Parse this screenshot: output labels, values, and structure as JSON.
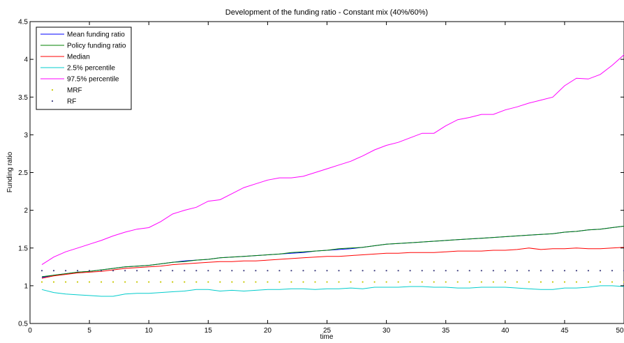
{
  "chart_data": {
    "type": "line",
    "title": "Development of the funding ratio - Constant mix (40%/60%)",
    "xlabel": "time",
    "ylabel": "Funding ratio",
    "xlim": [
      0,
      50
    ],
    "ylim": [
      0.5,
      4.5
    ],
    "xticks": [
      0,
      5,
      10,
      15,
      20,
      25,
      30,
      35,
      40,
      45,
      50
    ],
    "yticks": [
      0.5,
      1,
      1.5,
      2,
      2.5,
      3,
      3.5,
      4,
      4.5
    ],
    "xtick_labels": [
      "0",
      "5",
      "10",
      "15",
      "20",
      "25",
      "30",
      "35",
      "40",
      "45",
      "50"
    ],
    "ytick_labels": [
      "0.5",
      "1",
      "1.5",
      "2",
      "2.5",
      "3",
      "3.5",
      "4",
      "4.5"
    ],
    "grid": false,
    "legend_position": "top-left",
    "series": [
      {
        "name": "Mean funding ratio",
        "color": "#0000ff",
        "style": "line",
        "x": [
          1,
          2,
          3,
          4,
          5,
          6,
          7,
          8,
          9,
          10,
          11,
          12,
          13,
          14,
          15,
          16,
          17,
          18,
          19,
          20,
          21,
          22,
          23,
          24,
          25,
          26,
          27,
          28,
          29,
          30,
          31,
          32,
          33,
          34,
          35,
          36,
          37,
          38,
          39,
          40,
          41,
          42,
          43,
          44,
          45,
          46,
          47,
          48,
          49,
          50
        ],
        "values": [
          1.11,
          1.14,
          1.16,
          1.18,
          1.19,
          1.21,
          1.23,
          1.25,
          1.26,
          1.27,
          1.29,
          1.31,
          1.33,
          1.34,
          1.35,
          1.37,
          1.38,
          1.39,
          1.4,
          1.41,
          1.42,
          1.43,
          1.44,
          1.46,
          1.47,
          1.48,
          1.49,
          1.51,
          1.53,
          1.55,
          1.56,
          1.57,
          1.58,
          1.59,
          1.6,
          1.61,
          1.62,
          1.63,
          1.64,
          1.65,
          1.66,
          1.67,
          1.68,
          1.69,
          1.71,
          1.72,
          1.74,
          1.75,
          1.77,
          1.79
        ]
      },
      {
        "name": "Policy funding ratio",
        "color": "#008000",
        "style": "line",
        "x": [
          1,
          2,
          3,
          4,
          5,
          6,
          7,
          8,
          9,
          10,
          11,
          12,
          13,
          14,
          15,
          16,
          17,
          18,
          19,
          20,
          21,
          22,
          23,
          24,
          25,
          26,
          27,
          28,
          29,
          30,
          31,
          32,
          33,
          34,
          35,
          36,
          37,
          38,
          39,
          40,
          41,
          42,
          43,
          44,
          45,
          46,
          47,
          48,
          49,
          50
        ],
        "values": [
          1.12,
          1.14,
          1.16,
          1.18,
          1.19,
          1.21,
          1.23,
          1.25,
          1.26,
          1.27,
          1.29,
          1.31,
          1.32,
          1.34,
          1.35,
          1.37,
          1.38,
          1.39,
          1.4,
          1.41,
          1.42,
          1.44,
          1.45,
          1.46,
          1.47,
          1.49,
          1.5,
          1.51,
          1.53,
          1.55,
          1.56,
          1.57,
          1.58,
          1.59,
          1.6,
          1.61,
          1.62,
          1.63,
          1.64,
          1.65,
          1.66,
          1.67,
          1.68,
          1.69,
          1.71,
          1.72,
          1.74,
          1.75,
          1.77,
          1.79
        ]
      },
      {
        "name": "Median",
        "color": "#ff0000",
        "style": "line",
        "x": [
          1,
          2,
          3,
          4,
          5,
          6,
          7,
          8,
          9,
          10,
          11,
          12,
          13,
          14,
          15,
          16,
          17,
          18,
          19,
          20,
          21,
          22,
          23,
          24,
          25,
          26,
          27,
          28,
          29,
          30,
          31,
          32,
          33,
          34,
          35,
          36,
          37,
          38,
          39,
          40,
          41,
          42,
          43,
          44,
          45,
          46,
          47,
          48,
          49,
          50
        ],
        "values": [
          1.1,
          1.13,
          1.15,
          1.17,
          1.18,
          1.19,
          1.21,
          1.23,
          1.24,
          1.25,
          1.26,
          1.28,
          1.29,
          1.3,
          1.31,
          1.32,
          1.32,
          1.33,
          1.33,
          1.34,
          1.35,
          1.36,
          1.37,
          1.38,
          1.39,
          1.39,
          1.4,
          1.41,
          1.42,
          1.43,
          1.43,
          1.44,
          1.44,
          1.44,
          1.45,
          1.46,
          1.46,
          1.46,
          1.47,
          1.47,
          1.48,
          1.5,
          1.48,
          1.49,
          1.49,
          1.5,
          1.49,
          1.49,
          1.5,
          1.51
        ]
      },
      {
        "name": "2.5% percentile",
        "color": "#00cccc",
        "style": "line",
        "x": [
          1,
          2,
          3,
          4,
          5,
          6,
          7,
          8,
          9,
          10,
          11,
          12,
          13,
          14,
          15,
          16,
          17,
          18,
          19,
          20,
          21,
          22,
          23,
          24,
          25,
          26,
          27,
          28,
          29,
          30,
          31,
          32,
          33,
          34,
          35,
          36,
          37,
          38,
          39,
          40,
          41,
          42,
          43,
          44,
          45,
          46,
          47,
          48,
          49,
          50
        ],
        "values": [
          0.95,
          0.91,
          0.89,
          0.88,
          0.87,
          0.86,
          0.86,
          0.89,
          0.9,
          0.9,
          0.91,
          0.92,
          0.93,
          0.95,
          0.95,
          0.93,
          0.94,
          0.93,
          0.94,
          0.95,
          0.95,
          0.96,
          0.96,
          0.95,
          0.96,
          0.96,
          0.97,
          0.96,
          0.98,
          0.98,
          0.98,
          0.99,
          0.99,
          0.98,
          0.98,
          0.97,
          0.97,
          0.98,
          0.98,
          0.98,
          0.97,
          0.96,
          0.95,
          0.95,
          0.97,
          0.97,
          0.98,
          1.0,
          1.0,
          0.99
        ]
      },
      {
        "name": "97.5% percentile",
        "color": "#ff00ff",
        "style": "line",
        "x": [
          1,
          2,
          3,
          4,
          5,
          6,
          7,
          8,
          9,
          10,
          11,
          12,
          13,
          14,
          15,
          16,
          17,
          18,
          19,
          20,
          21,
          22,
          23,
          24,
          25,
          26,
          27,
          28,
          29,
          30,
          31,
          32,
          33,
          34,
          35,
          36,
          37,
          38,
          39,
          40,
          41,
          42,
          43,
          44,
          45,
          46,
          47,
          48,
          49,
          50
        ],
        "values": [
          1.28,
          1.38,
          1.45,
          1.5,
          1.55,
          1.6,
          1.66,
          1.71,
          1.75,
          1.77,
          1.85,
          1.95,
          2.0,
          2.04,
          2.12,
          2.14,
          2.22,
          2.3,
          2.35,
          2.4,
          2.43,
          2.43,
          2.45,
          2.5,
          2.55,
          2.6,
          2.65,
          2.72,
          2.8,
          2.86,
          2.9,
          2.96,
          3.02,
          3.02,
          3.12,
          3.2,
          3.23,
          3.27,
          3.27,
          3.33,
          3.37,
          3.42,
          3.46,
          3.5,
          3.65,
          3.75,
          3.74,
          3.8,
          3.92,
          4.06
        ]
      },
      {
        "name": "MRF",
        "color": "#c8c800",
        "style": "dots",
        "x": [
          1,
          2,
          3,
          4,
          5,
          6,
          7,
          8,
          9,
          10,
          11,
          12,
          13,
          14,
          15,
          16,
          17,
          18,
          19,
          20,
          21,
          22,
          23,
          24,
          25,
          26,
          27,
          28,
          29,
          30,
          31,
          32,
          33,
          34,
          35,
          36,
          37,
          38,
          39,
          40,
          41,
          42,
          43,
          44,
          45,
          46,
          47,
          48,
          49,
          50
        ],
        "values": [
          1.05,
          1.05,
          1.05,
          1.05,
          1.05,
          1.05,
          1.05,
          1.05,
          1.05,
          1.05,
          1.05,
          1.05,
          1.05,
          1.05,
          1.05,
          1.05,
          1.05,
          1.05,
          1.05,
          1.05,
          1.05,
          1.05,
          1.05,
          1.05,
          1.05,
          1.05,
          1.05,
          1.05,
          1.05,
          1.05,
          1.05,
          1.05,
          1.05,
          1.05,
          1.05,
          1.05,
          1.05,
          1.05,
          1.05,
          1.05,
          1.05,
          1.05,
          1.05,
          1.05,
          1.05,
          1.05,
          1.05,
          1.05,
          1.05,
          1.05
        ]
      },
      {
        "name": "RF",
        "color": "#404080",
        "style": "dots",
        "x": [
          1,
          2,
          3,
          4,
          5,
          6,
          7,
          8,
          9,
          10,
          11,
          12,
          13,
          14,
          15,
          16,
          17,
          18,
          19,
          20,
          21,
          22,
          23,
          24,
          25,
          26,
          27,
          28,
          29,
          30,
          31,
          32,
          33,
          34,
          35,
          36,
          37,
          38,
          39,
          40,
          41,
          42,
          43,
          44,
          45,
          46,
          47,
          48,
          49,
          50
        ],
        "values": [
          1.2,
          1.2,
          1.2,
          1.2,
          1.2,
          1.2,
          1.2,
          1.2,
          1.2,
          1.2,
          1.2,
          1.2,
          1.2,
          1.2,
          1.2,
          1.2,
          1.2,
          1.2,
          1.2,
          1.2,
          1.2,
          1.2,
          1.2,
          1.2,
          1.2,
          1.2,
          1.2,
          1.2,
          1.2,
          1.2,
          1.2,
          1.2,
          1.2,
          1.2,
          1.2,
          1.2,
          1.2,
          1.2,
          1.2,
          1.2,
          1.2,
          1.2,
          1.2,
          1.2,
          1.2,
          1.2,
          1.2,
          1.2,
          1.2,
          1.2
        ]
      }
    ]
  }
}
